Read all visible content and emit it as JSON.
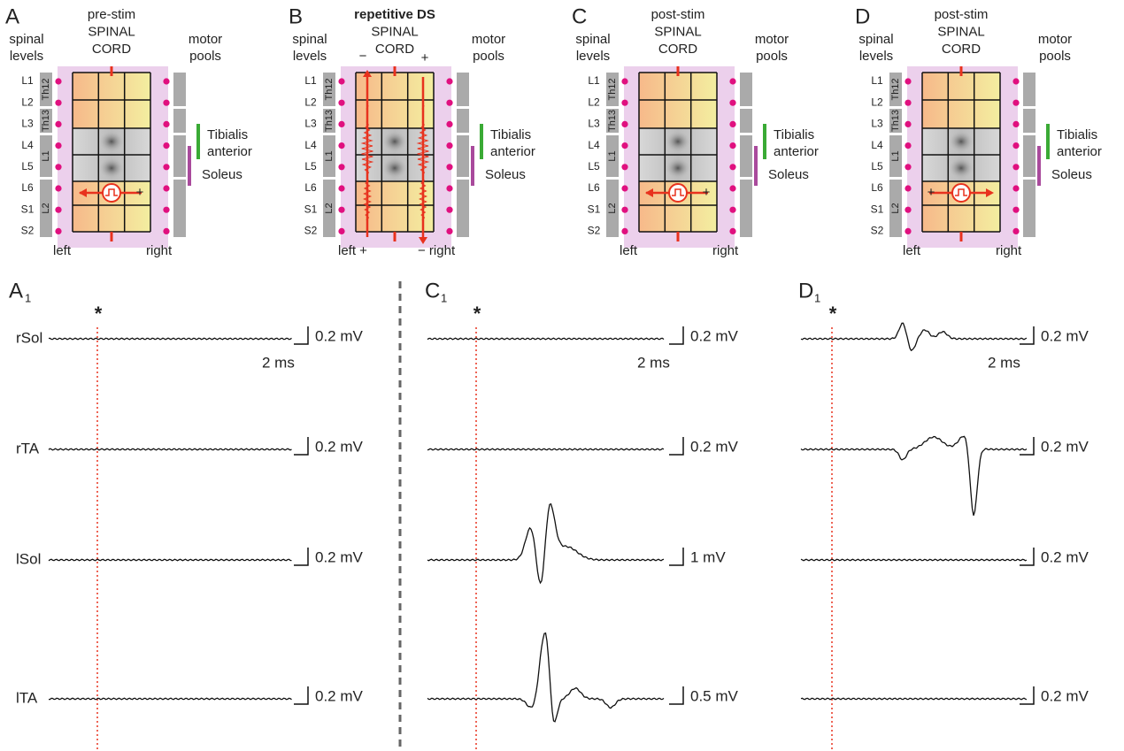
{
  "panels": [
    {
      "letter": "A",
      "title": [
        "pre-stim",
        "SPINAL",
        "CORD"
      ],
      "bottom": [
        "left",
        "right"
      ],
      "electrode": "+"
    },
    {
      "letter": "B",
      "title": [
        "repetitive DS",
        "SPINAL",
        "CORD"
      ],
      "bottom": [
        "left +",
        "− right"
      ],
      "poles": [
        "−",
        "+"
      ]
    },
    {
      "letter": "C",
      "title": [
        "post-stim",
        "SPINAL",
        "CORD"
      ],
      "bottom": [
        "left",
        "right"
      ],
      "electrode": "+"
    },
    {
      "letter": "D",
      "title": [
        "post-stim",
        "SPINAL",
        "CORD"
      ],
      "bottom": [
        "left",
        "right"
      ],
      "electrode": "+"
    }
  ],
  "cord": {
    "side_label": [
      "spinal",
      "levels"
    ],
    "pools_label": [
      "motor",
      "pools"
    ],
    "levels": [
      "L1",
      "L2",
      "L3",
      "L4",
      "L5",
      "L6",
      "S1",
      "S2"
    ],
    "segments": [
      "Th12",
      "Th13",
      "L1",
      "L2"
    ],
    "tibialis": [
      "Tibialis",
      "anterior"
    ],
    "soleus": "Soleus"
  },
  "traces": {
    "rows": [
      "rSol",
      "rTA",
      "lSol",
      "lTA"
    ],
    "marker": "*",
    "time_scale": "2 ms",
    "columns": [
      {
        "letter": "A",
        "sub": "1",
        "scales": [
          "0.2 mV",
          "0.2 mV",
          "0.2 mV",
          "0.2 mV"
        ]
      },
      {
        "letter": "C",
        "sub": "1",
        "scales": [
          "0.2 mV",
          "0.2 mV",
          "1 mV",
          "0.5 mV"
        ]
      },
      {
        "letter": "D",
        "sub": "1",
        "scales": [
          "0.2 mV",
          "0.2 mV",
          "0.2 mV",
          "0.2 mV"
        ]
      }
    ]
  }
}
